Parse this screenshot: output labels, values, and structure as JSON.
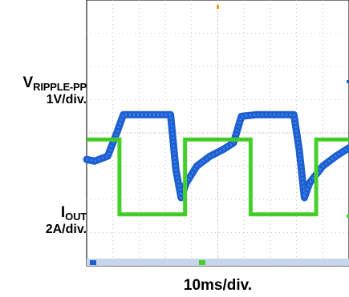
{
  "chart_data": {
    "type": "line",
    "title": "",
    "xlabel": "10ms/div.",
    "x_unit_per_div": "10ms",
    "divisions": {
      "horizontal": 10,
      "vertical": 8
    },
    "grid": true,
    "series": [
      {
        "name": "VRIPPLE-PP",
        "label_main": "V",
        "label_sub": "RIPPLE-PP",
        "scale": "1V/div.",
        "color": "#1e5fd0",
        "description_points_div": [
          [
            0.0,
            3.2
          ],
          [
            0.3,
            3.15
          ],
          [
            0.8,
            3.3
          ],
          [
            1.1,
            3.9
          ],
          [
            1.4,
            4.55
          ],
          [
            3.2,
            4.55
          ],
          [
            3.4,
            2.9
          ],
          [
            3.6,
            2.05
          ],
          [
            3.8,
            2.5
          ],
          [
            4.2,
            3.0
          ],
          [
            4.7,
            3.3
          ],
          [
            5.2,
            3.5
          ],
          [
            5.6,
            3.7
          ],
          [
            5.9,
            4.5
          ],
          [
            6.5,
            4.55
          ],
          [
            7.9,
            4.55
          ],
          [
            8.1,
            3.5
          ],
          [
            8.3,
            2.05
          ],
          [
            8.5,
            2.5
          ],
          [
            9.0,
            3.0
          ],
          [
            9.5,
            3.3
          ],
          [
            10.0,
            3.55
          ]
        ]
      },
      {
        "name": "IOUT",
        "label_main": "I",
        "label_sub": "OUT",
        "scale": "2A/div.",
        "color": "#46d12a",
        "description_points_div": [
          [
            0.0,
            3.8
          ],
          [
            1.25,
            3.8
          ],
          [
            1.25,
            1.55
          ],
          [
            3.75,
            1.55
          ],
          [
            3.75,
            3.8
          ],
          [
            6.25,
            3.8
          ],
          [
            6.25,
            1.55
          ],
          [
            8.75,
            1.55
          ],
          [
            8.75,
            3.8
          ],
          [
            10.0,
            3.8
          ]
        ]
      }
    ]
  }
}
